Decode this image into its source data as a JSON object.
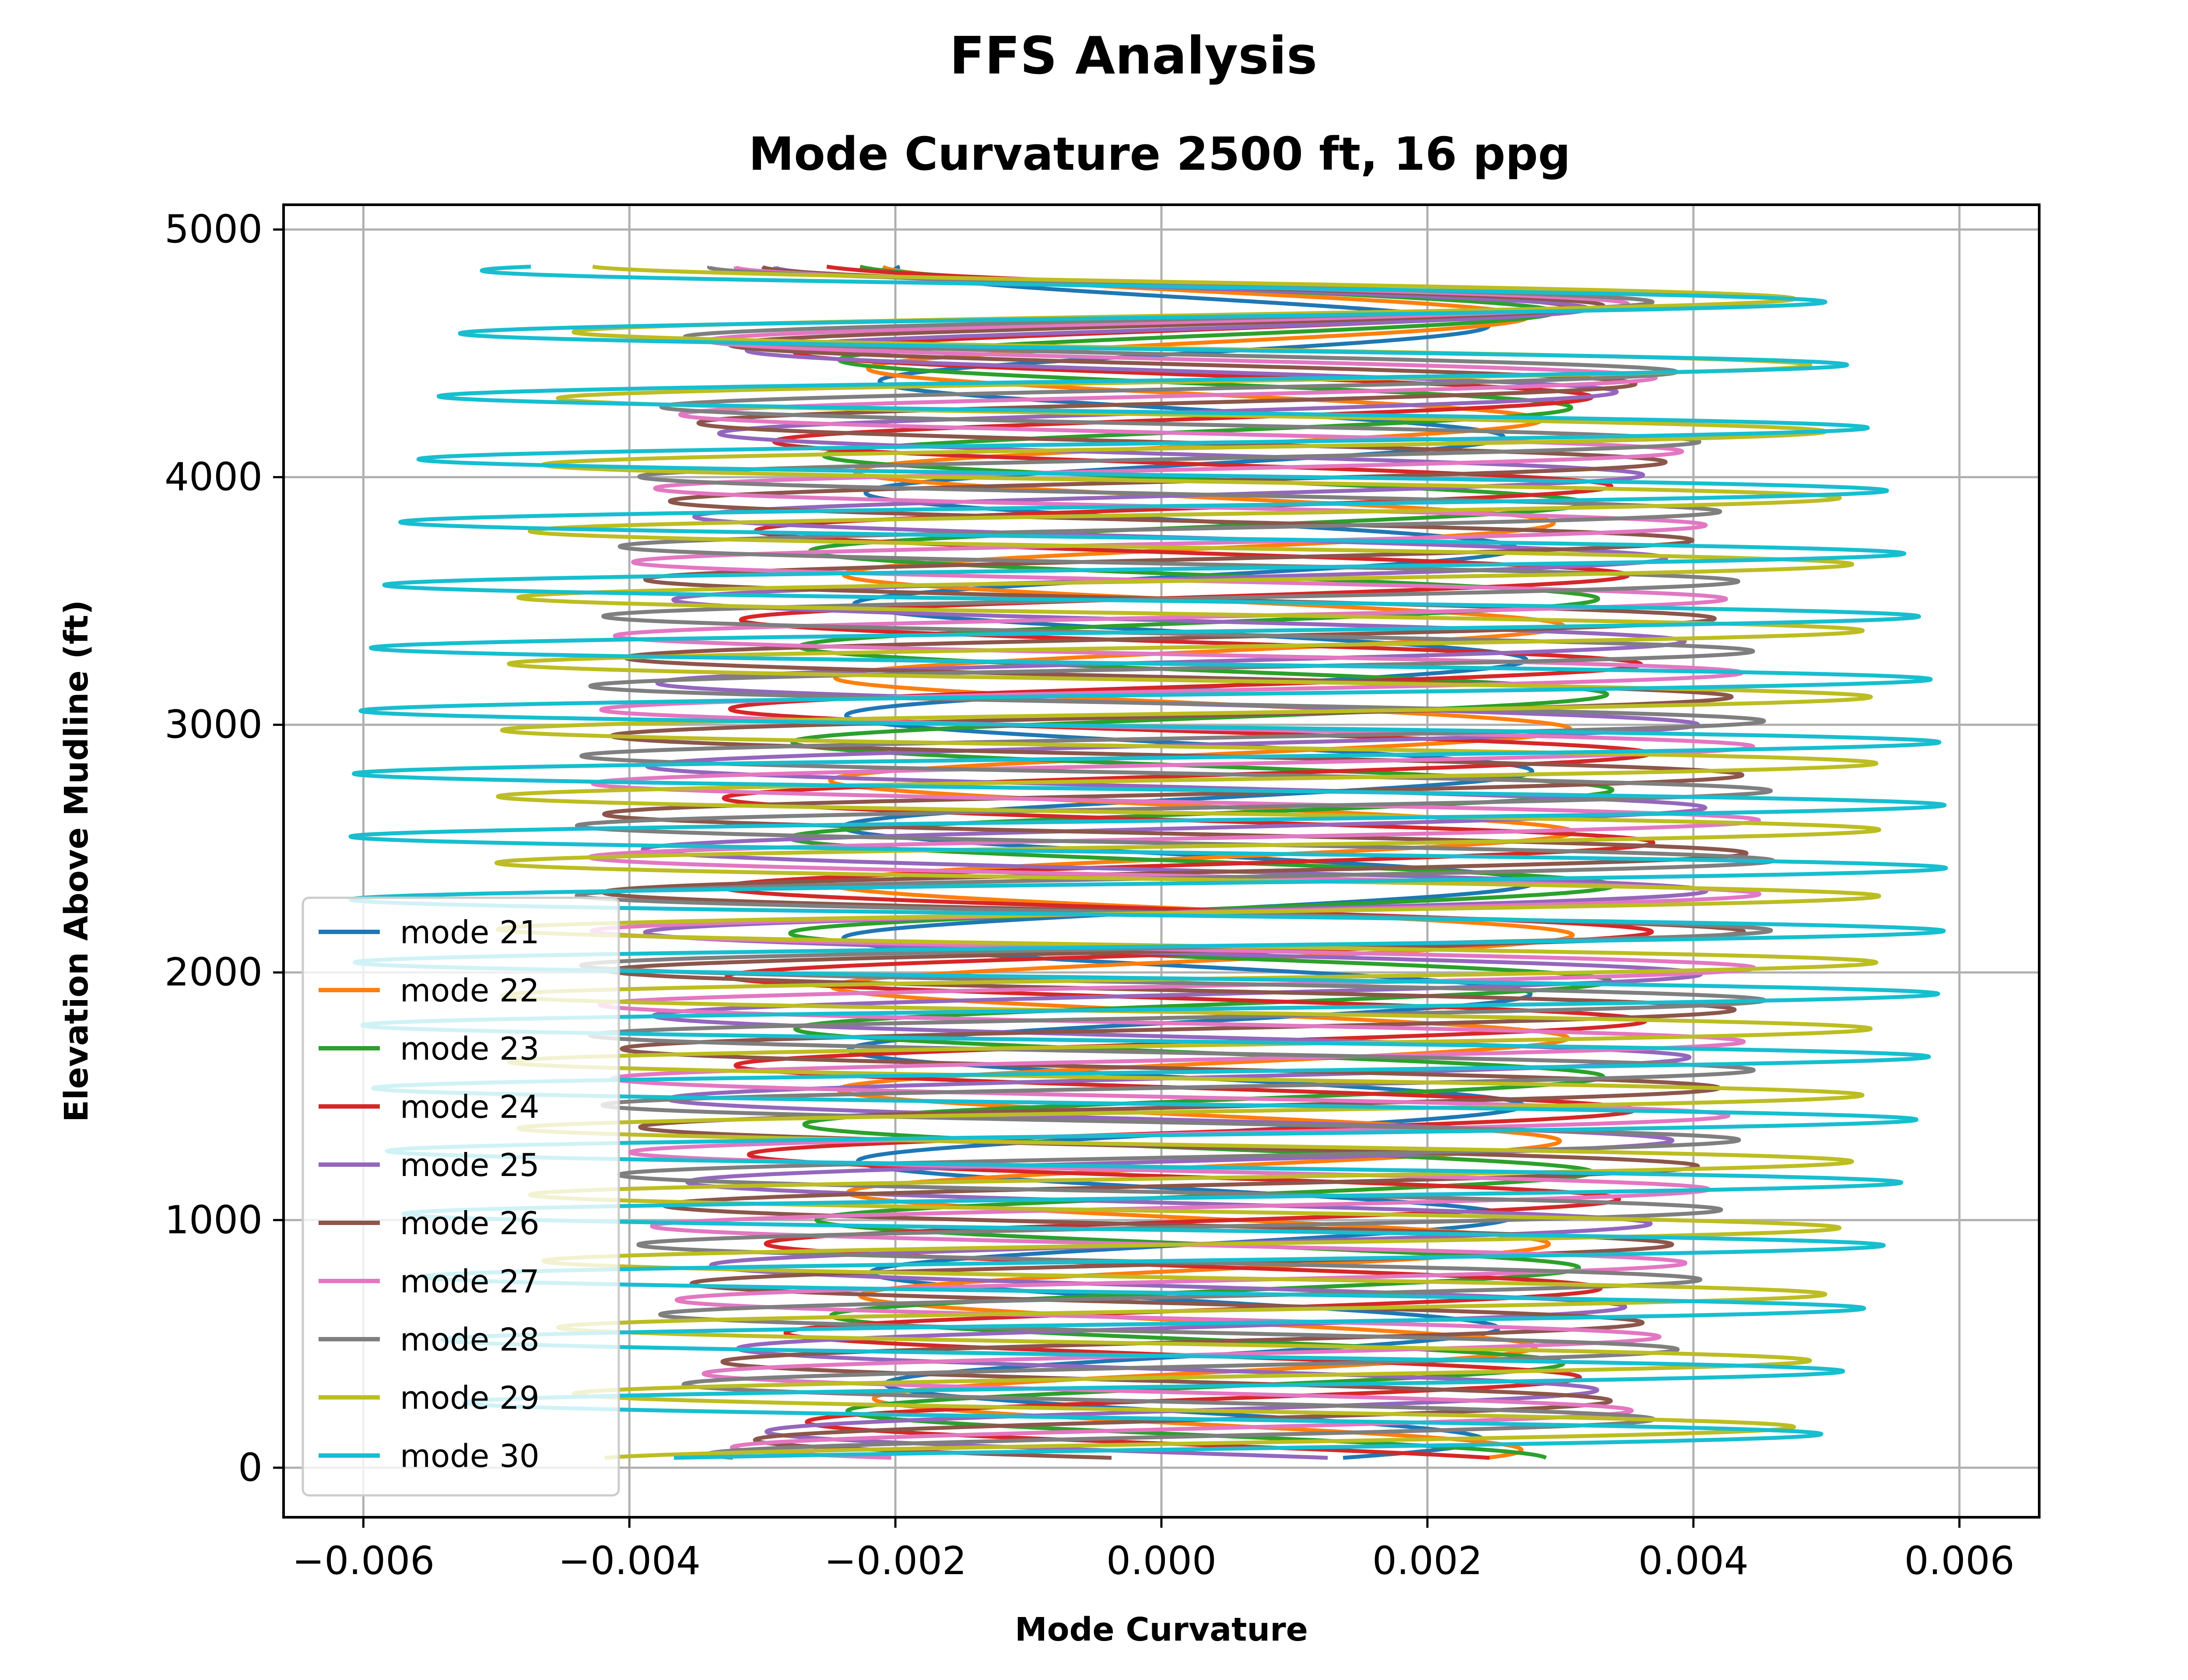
{
  "chart_data": {
    "type": "line",
    "suptitle": "FFS Analysis",
    "title": "Mode Curvature 2500 ft, 16 ppg",
    "xlabel": "Mode Curvature",
    "ylabel": "Elevation Above Mudline (ft)",
    "xlim": [
      -0.0066,
      0.0066
    ],
    "ylim": [
      -200,
      5100
    ],
    "xticks": [
      -0.006,
      -0.004,
      -0.002,
      0.0,
      0.002,
      0.004,
      0.006
    ],
    "xtick_labels": [
      "−0.006",
      "−0.004",
      "−0.002",
      "0.000",
      "0.002",
      "0.004",
      "0.006"
    ],
    "yticks": [
      0,
      1000,
      2000,
      3000,
      4000,
      5000
    ],
    "ytick_labels": [
      "0",
      "1000",
      "2000",
      "3000",
      "4000",
      "5000"
    ],
    "grid": true,
    "legend_position": "lower-left",
    "series": [
      {
        "name": "mode 21",
        "color": "#1f77b4",
        "amp_lo": 0.0022,
        "amp_hi": 0.0026,
        "half_wave_ft": 225,
        "phase": 0.0,
        "bias": 0.0002,
        "y_start": 40,
        "y_end": 4850
      },
      {
        "name": "mode 22",
        "color": "#ff7f0e",
        "amp_lo": 0.0024,
        "amp_hi": 0.0028,
        "half_wave_ft": 208,
        "phase": 0.5,
        "bias": 0.0003,
        "y_start": 40,
        "y_end": 4850
      },
      {
        "name": "mode 23",
        "color": "#2ca02c",
        "amp_lo": 0.0026,
        "amp_hi": 0.0031,
        "half_wave_ft": 193,
        "phase": 1.0,
        "bias": 0.0003,
        "y_start": 40,
        "y_end": 4850
      },
      {
        "name": "mode 24",
        "color": "#d62728",
        "amp_lo": 0.0028,
        "amp_hi": 0.0035,
        "half_wave_ft": 180,
        "phase": 1.5,
        "bias": 0.0002,
        "y_start": 40,
        "y_end": 4850
      },
      {
        "name": "mode 25",
        "color": "#9467bd",
        "amp_lo": 0.003,
        "amp_hi": 0.004,
        "half_wave_ft": 168,
        "phase": 2.0,
        "bias": 0.0001,
        "y_start": 40,
        "y_end": 4850
      },
      {
        "name": "mode 26",
        "color": "#8c564b",
        "amp_lo": 0.0031,
        "amp_hi": 0.0043,
        "half_wave_ft": 158,
        "phase": 2.5,
        "bias": 0.0001,
        "y_start": 40,
        "y_end": 4850
      },
      {
        "name": "mode 27",
        "color": "#e377c2",
        "amp_lo": 0.0033,
        "amp_hi": 0.0044,
        "half_wave_ft": 149,
        "phase": 3.0,
        "bias": 0.0001,
        "y_start": 40,
        "y_end": 4850
      },
      {
        "name": "mode 28",
        "color": "#7f7f7f",
        "amp_lo": 0.0035,
        "amp_hi": 0.0045,
        "half_wave_ft": 141,
        "phase": 3.5,
        "bias": 0.0001,
        "y_start": 40,
        "y_end": 4850
      },
      {
        "name": "mode 29",
        "color": "#bcbd22",
        "amp_lo": 0.0045,
        "amp_hi": 0.0052,
        "half_wave_ft": 134,
        "phase": 4.0,
        "bias": 0.0002,
        "y_start": 40,
        "y_end": 4850
      },
      {
        "name": "mode 30",
        "color": "#17becf",
        "amp_lo": 0.005,
        "amp_hi": 0.006,
        "half_wave_ft": 127,
        "phase": 4.5,
        "bias": -0.0001,
        "y_start": 40,
        "y_end": 4850
      }
    ]
  }
}
